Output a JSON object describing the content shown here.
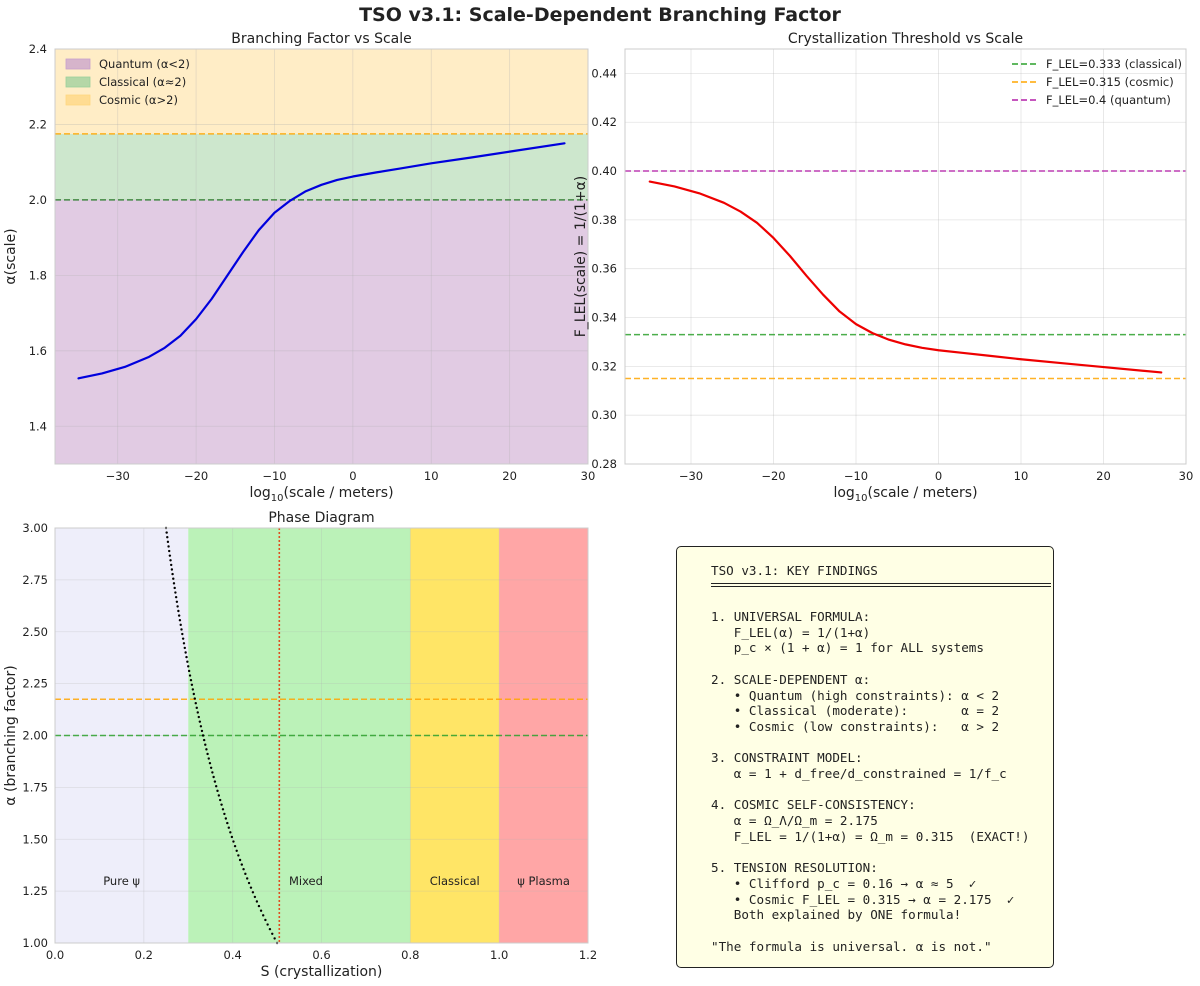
{
  "figure": {
    "title": "TSO v3.1: Scale-Dependent Branching Factor"
  },
  "chart_data": [
    {
      "id": "branching",
      "type": "line",
      "title": "Branching Factor vs Scale",
      "xlabel_main": "log",
      "xlabel_sub": "10",
      "xlabel_rest": "(scale / meters)",
      "ylabel": "α(scale)",
      "xlim": [
        -38,
        30
      ],
      "ylim": [
        1.3,
        2.4
      ],
      "xticks": [
        -30,
        -20,
        -10,
        0,
        10,
        20,
        30
      ],
      "xtick_labels": [
        "−30",
        "−20",
        "−10",
        "0",
        "10",
        "20",
        "30"
      ],
      "yticks": [
        1.4,
        1.6,
        1.8,
        2.0,
        2.2,
        2.4
      ],
      "ytick_labels": [
        "1.4",
        "1.6",
        "1.8",
        "2.0",
        "2.2",
        "2.4"
      ],
      "grid": true,
      "bands": [
        {
          "name": "Quantum (α<2)",
          "y0": 1.3,
          "y1": 2.0,
          "color": "#c8a0cc",
          "opacity": 0.55
        },
        {
          "name": "Classical (α≈2)",
          "y0": 2.0,
          "y1": 2.175,
          "color": "#9ccf9c",
          "opacity": 0.5
        },
        {
          "name": "Cosmic (α>2)",
          "y0": 2.175,
          "y1": 2.4,
          "color": "#ffd680",
          "opacity": 0.45
        }
      ],
      "hlines": [
        {
          "y": 2.0,
          "color": "#2a7a2a"
        },
        {
          "y": 2.175,
          "color": "#ffa500"
        }
      ],
      "legend_position": "top-left",
      "series": [
        {
          "name": "α(scale)",
          "color": "#0000dd",
          "x": [
            -35,
            -32,
            -29,
            -26,
            -24,
            -22,
            -20,
            -18,
            -16,
            -14,
            -12,
            -10,
            -8,
            -6,
            -4,
            -2,
            0,
            3,
            6,
            10,
            15,
            20,
            27
          ],
          "y": [
            1.527,
            1.54,
            1.558,
            1.584,
            1.608,
            1.64,
            1.684,
            1.738,
            1.8,
            1.862,
            1.92,
            1.966,
            1.998,
            2.023,
            2.04,
            2.053,
            2.062,
            2.073,
            2.083,
            2.097,
            2.112,
            2.128,
            2.15
          ]
        }
      ]
    },
    {
      "id": "crystallization",
      "type": "line",
      "title": "Crystallization Threshold vs Scale",
      "xlabel_main": "log",
      "xlabel_sub": "10",
      "xlabel_rest": "(scale / meters)",
      "ylabel": "F_LEL(scale) = 1/(1+α)",
      "xlim": [
        -38,
        30
      ],
      "ylim": [
        0.28,
        0.45
      ],
      "xticks": [
        -30,
        -20,
        -10,
        0,
        10,
        20,
        30
      ],
      "xtick_labels": [
        "−30",
        "−20",
        "−10",
        "0",
        "10",
        "20",
        "30"
      ],
      "yticks": [
        0.28,
        0.3,
        0.32,
        0.34,
        0.36,
        0.38,
        0.4,
        0.42,
        0.44
      ],
      "ytick_labels": [
        "0.28",
        "0.30",
        "0.32",
        "0.34",
        "0.36",
        "0.38",
        "0.40",
        "0.42",
        "0.44"
      ],
      "grid": true,
      "legend_position": "top-right",
      "hlines": [
        {
          "y": 0.333,
          "color": "#2ca02c",
          "label": "F_LEL=0.333 (classical)"
        },
        {
          "y": 0.315,
          "color": "#ffa500",
          "label": "F_LEL=0.315 (cosmic)"
        },
        {
          "y": 0.4,
          "color": "#b41fa8",
          "label": "F_LEL=0.4 (quantum)"
        }
      ],
      "series": [
        {
          "name": "F_LEL(scale)",
          "color": "#ee0000",
          "x": [
            -35,
            -32,
            -29,
            -26,
            -24,
            -22,
            -20,
            -18,
            -16,
            -14,
            -12,
            -10,
            -8,
            -6,
            -4,
            -2,
            0,
            3,
            6,
            10,
            15,
            20,
            27
          ],
          "y": [
            0.3957,
            0.3937,
            0.3909,
            0.387,
            0.3834,
            0.3788,
            0.3726,
            0.3652,
            0.3571,
            0.3494,
            0.3425,
            0.3373,
            0.3336,
            0.3309,
            0.329,
            0.3276,
            0.3266,
            0.3255,
            0.3244,
            0.3229,
            0.3213,
            0.3197,
            0.3175
          ]
        }
      ]
    },
    {
      "id": "phase",
      "type": "scatter",
      "title": "Phase Diagram",
      "xlabel": "S (crystallization)",
      "ylabel": "α (branching factor)",
      "xlim": [
        0.0,
        1.2
      ],
      "ylim": [
        1.0,
        3.0
      ],
      "xticks": [
        0.0,
        0.2,
        0.4,
        0.6,
        0.8,
        1.0,
        1.2
      ],
      "xtick_labels": [
        "0.0",
        "0.2",
        "0.4",
        "0.6",
        "0.8",
        "1.0",
        "1.2"
      ],
      "yticks": [
        1.0,
        1.25,
        1.5,
        1.75,
        2.0,
        2.25,
        2.5,
        2.75,
        3.0
      ],
      "ytick_labels": [
        "1.00",
        "1.25",
        "1.50",
        "1.75",
        "2.00",
        "2.25",
        "2.50",
        "2.75",
        "3.00"
      ],
      "regions": [
        {
          "label": "Pure ψ",
          "x0": 0.0,
          "x1": 0.3,
          "color": "#eeeefa"
        },
        {
          "label": "Mixed",
          "x0": 0.3,
          "x1": 0.8,
          "color": "#bbf2b8"
        },
        {
          "label": "Classical",
          "x0": 0.8,
          "x1": 1.0,
          "color": "#ffe566"
        },
        {
          "label": "ψ Plasma",
          "x0": 1.0,
          "x1": 1.2,
          "color": "#ffa6a6"
        }
      ],
      "region_label_y": 1.3,
      "hlines": [
        {
          "y": 2.175,
          "color": "#ffa500"
        },
        {
          "y": 2.0,
          "color": "#2ca02c"
        }
      ],
      "vlines": [
        {
          "x": 0.505,
          "color": "#e05020"
        }
      ],
      "curve": {
        "name": "F_LEL = 1/(1+α)",
        "formula": "S = 1/(1+α)",
        "color": "#000000",
        "alpha_range": [
          1.0,
          3.0
        ]
      }
    }
  ],
  "findings": {
    "title": "TSO v3.1: KEY FINDINGS",
    "lines": [
      "1. UNIVERSAL FORMULA:",
      "   F_LEL(α) = 1/(1+α)",
      "   p_c × (1 + α) = 1 for ALL systems",
      "",
      "2. SCALE-DEPENDENT α:",
      "   • Quantum (high constraints): α < 2",
      "   • Classical (moderate):       α = 2",
      "   • Cosmic (low constraints):   α > 2",
      "",
      "3. CONSTRAINT MODEL:",
      "   α = 1 + d_free/d_constrained = 1/f_c",
      "",
      "4. COSMIC SELF-CONSISTENCY:",
      "   α = Ω_Λ/Ω_m = 2.175",
      "   F_LEL = 1/(1+α) = Ω_m = 0.315  (EXACT!)",
      "",
      "5. TENSION RESOLUTION:",
      "   • Clifford p_c = 0.16 → α ≈ 5  ✓",
      "   • Cosmic F_LEL = 0.315 → α = 2.175  ✓",
      "   Both explained by ONE formula!",
      "",
      "\"The formula is universal. α is not.\""
    ]
  }
}
